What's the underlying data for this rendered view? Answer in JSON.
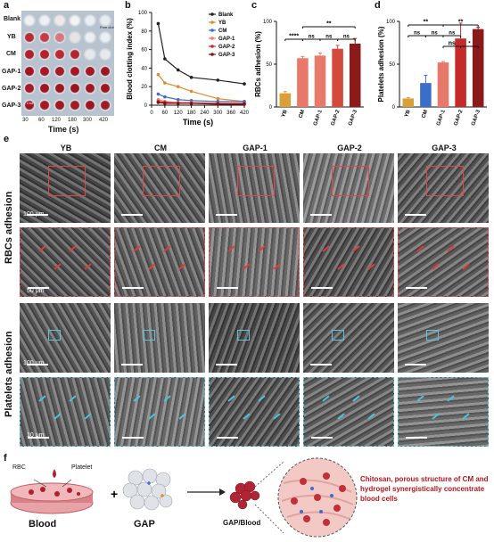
{
  "panels": {
    "a": "a",
    "b": "b",
    "c": "c",
    "d": "d",
    "e": "e",
    "f": "f"
  },
  "panel_a": {
    "rows": [
      "Blank",
      "YB",
      "CM",
      "GAP-1",
      "GAP-2",
      "GAP-3"
    ],
    "times": [
      "30",
      "60",
      "120",
      "180",
      "300",
      "420"
    ],
    "xlabel": "Time (s)",
    "tags": [
      "Free clot",
      "Clot"
    ]
  },
  "panel_e": {
    "columns": [
      "YB",
      "CM",
      "GAP-1",
      "GAP-2",
      "GAP-3"
    ],
    "side_rbc": "RBCs adhesion",
    "side_plt": "Platelets adhesion",
    "scales": [
      "100 μm",
      "50 μm",
      "100 μm",
      "10 μm"
    ]
  },
  "panel_f": {
    "rbc": "RBC",
    "platelet": "Platelet",
    "blood": "Blood",
    "gap": "GAP",
    "gap_blood": "GAP/Blood",
    "note": "Chitosan, porous structure of CM and hydrogel synergistically concentrate blood cells"
  },
  "chart_data": [
    {
      "type": "line",
      "panel": "b",
      "xlabel": "Time (s)",
      "ylabel": "Blood clotting index (%)",
      "xlim": [
        0,
        420
      ],
      "ylim": [
        0,
        100
      ],
      "x": [
        30,
        60,
        120,
        180,
        300,
        420
      ],
      "xticks": [
        0,
        60,
        120,
        180,
        240,
        300,
        360,
        420
      ],
      "yticks": [
        0,
        20,
        40,
        60,
        80,
        100
      ],
      "legend_position": "top-right",
      "series": [
        {
          "name": "Blank",
          "color": "#222222",
          "values": [
            88,
            50,
            38,
            30,
            27,
            23
          ]
        },
        {
          "name": "YB",
          "color": "#e08a2e",
          "values": [
            33,
            24,
            20,
            15,
            7,
            4
          ]
        },
        {
          "name": "CM",
          "color": "#3c6ec9",
          "values": [
            12,
            9,
            6,
            5,
            4,
            4
          ]
        },
        {
          "name": "GAP-1",
          "color": "#ef7b62",
          "values": [
            6,
            4,
            3,
            3,
            2,
            2
          ]
        },
        {
          "name": "GAP-2",
          "color": "#c72a2a",
          "values": [
            4,
            3,
            2,
            2,
            2,
            2
          ]
        },
        {
          "name": "GAP-3",
          "color": "#7a1414",
          "values": [
            3,
            2,
            2,
            2,
            1,
            1
          ]
        }
      ]
    },
    {
      "type": "bar",
      "panel": "c",
      "ylabel": "RBCs adhesion (%)",
      "categories": [
        "YB",
        "CM",
        "GAP-1",
        "GAP-2",
        "GAP-3"
      ],
      "values": [
        16,
        57,
        60,
        68,
        74
      ],
      "errors": [
        2,
        2,
        3,
        4,
        6
      ],
      "colors": [
        "#d9a03a",
        "#e8786a",
        "#e8786a",
        "#d24a3c",
        "#8b1a1a"
      ],
      "ylim": [
        0,
        100
      ],
      "yticks": [
        0,
        50,
        100
      ],
      "significance": [
        "****",
        "ns",
        "ns",
        "ns",
        "**"
      ]
    },
    {
      "type": "bar",
      "panel": "d",
      "ylabel": "Platelets adhesion (%)",
      "categories": [
        "YB",
        "CM",
        "GAP-1",
        "GAP-2",
        "GAP-3"
      ],
      "values": [
        10,
        28,
        52,
        80,
        91
      ],
      "errors": [
        1,
        9,
        1,
        18,
        2
      ],
      "colors": [
        "#d9a03a",
        "#3c6ec9",
        "#e8786a",
        "#c42a2a",
        "#8b1a1a"
      ],
      "ylim": [
        0,
        100
      ],
      "yticks": [
        0,
        50,
        100
      ],
      "significance": [
        "**",
        "**",
        "ns",
        "ns",
        "ns",
        "*",
        "ns"
      ]
    }
  ]
}
